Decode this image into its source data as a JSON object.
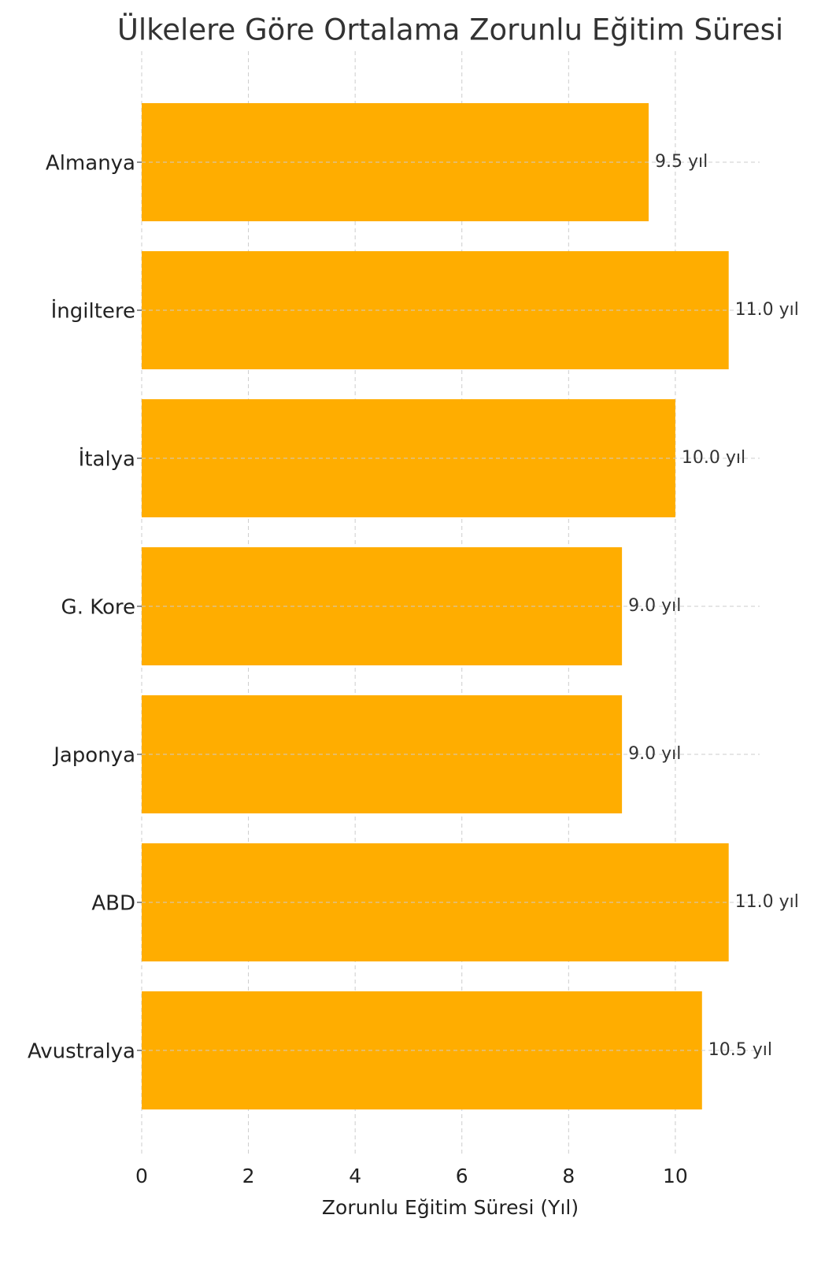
{
  "chart_data": {
    "type": "bar",
    "orientation": "horizontal",
    "title": "Ülkelere Göre Ortalama Zorunlu Eğitim Süresi",
    "x_label": "Zorunlu Eğitim Süresi (Yıl)",
    "categories": [
      "Almanya",
      "İngiltere",
      "İtalya",
      "G. Kore",
      "Japonya",
      "ABD",
      "Avustralya"
    ],
    "values": [
      9.5,
      11.0,
      10.0,
      9.0,
      9.0,
      11.0,
      10.5
    ],
    "value_labels": [
      "9.5 yıl",
      "11.0 yıl",
      "10.0 yıl",
      "9.0 yıl",
      "9.0 yıl",
      "11.0 yıl",
      "10.5 yıl"
    ],
    "color": "#ffad00",
    "xlim": [
      0,
      11.58
    ],
    "xticks": [
      0,
      2,
      4,
      6,
      8,
      10
    ],
    "grid": true
  }
}
